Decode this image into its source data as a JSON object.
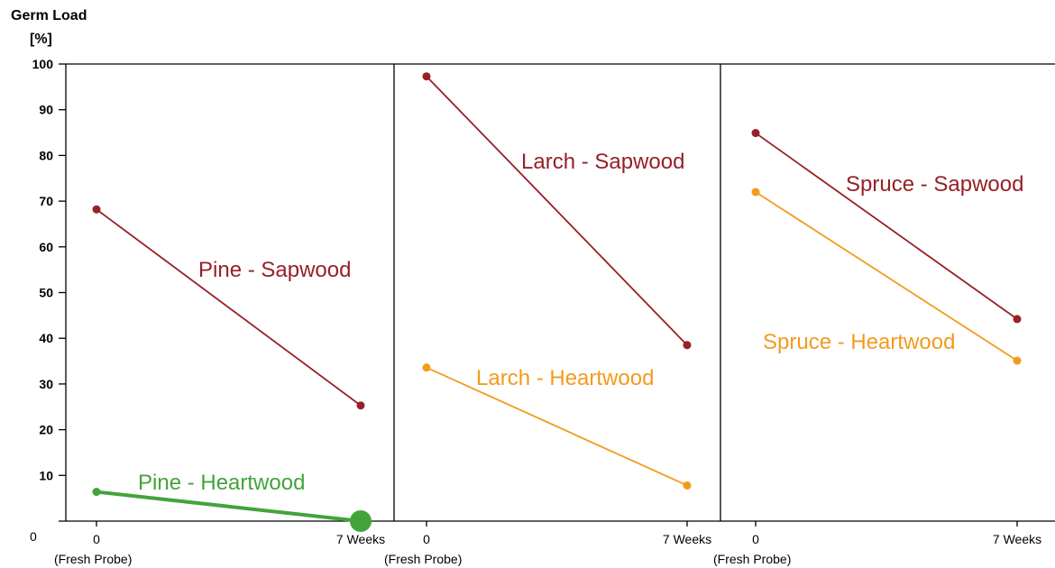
{
  "colors": {
    "sapwood": "#962127",
    "heartwood": "#F39A1D",
    "pine_heartwood": "#43A33B",
    "axis": "#000000"
  },
  "chart_data": {
    "type": "line",
    "ylabel": "Germ Load",
    "yunit": "[%]",
    "ylim": [
      0,
      100
    ],
    "yticks": [
      10,
      20,
      30,
      40,
      50,
      60,
      70,
      80,
      90,
      100
    ],
    "y_origin_label": "0",
    "grid": false,
    "panels": [
      {
        "x_labels": [
          "0",
          "7 Weeks"
        ],
        "x_sublabels": [
          "(Fresh Probe)",
          ""
        ],
        "series": [
          {
            "name": "Pine - Sapwood",
            "color": "#962127",
            "values": [
              68.2,
              25.3
            ]
          },
          {
            "name": "Pine - Heartwood",
            "color": "#43A33B",
            "values": [
              6.4,
              0
            ]
          }
        ]
      },
      {
        "x_labels": [
          "0",
          "7 Weeks"
        ],
        "x_sublabels": [
          "(Fresh Probe)",
          ""
        ],
        "series": [
          {
            "name": "Larch - Sapwood",
            "color": "#962127",
            "values": [
              97.3,
              38.5
            ]
          },
          {
            "name": "Larch - Heartwood",
            "color": "#F39A1D",
            "values": [
              33.6,
              7.8
            ]
          }
        ]
      },
      {
        "x_labels": [
          "0",
          "7 Weeks"
        ],
        "x_sublabels": [
          "(Fresh Probe)",
          ""
        ],
        "series": [
          {
            "name": "Spruce - Sapwood",
            "color": "#962127",
            "values": [
              84.9,
              44.2
            ]
          },
          {
            "name": "Spruce - Heartwood",
            "color": "#F39A1D",
            "values": [
              72.0,
              35.1
            ]
          }
        ]
      }
    ]
  }
}
